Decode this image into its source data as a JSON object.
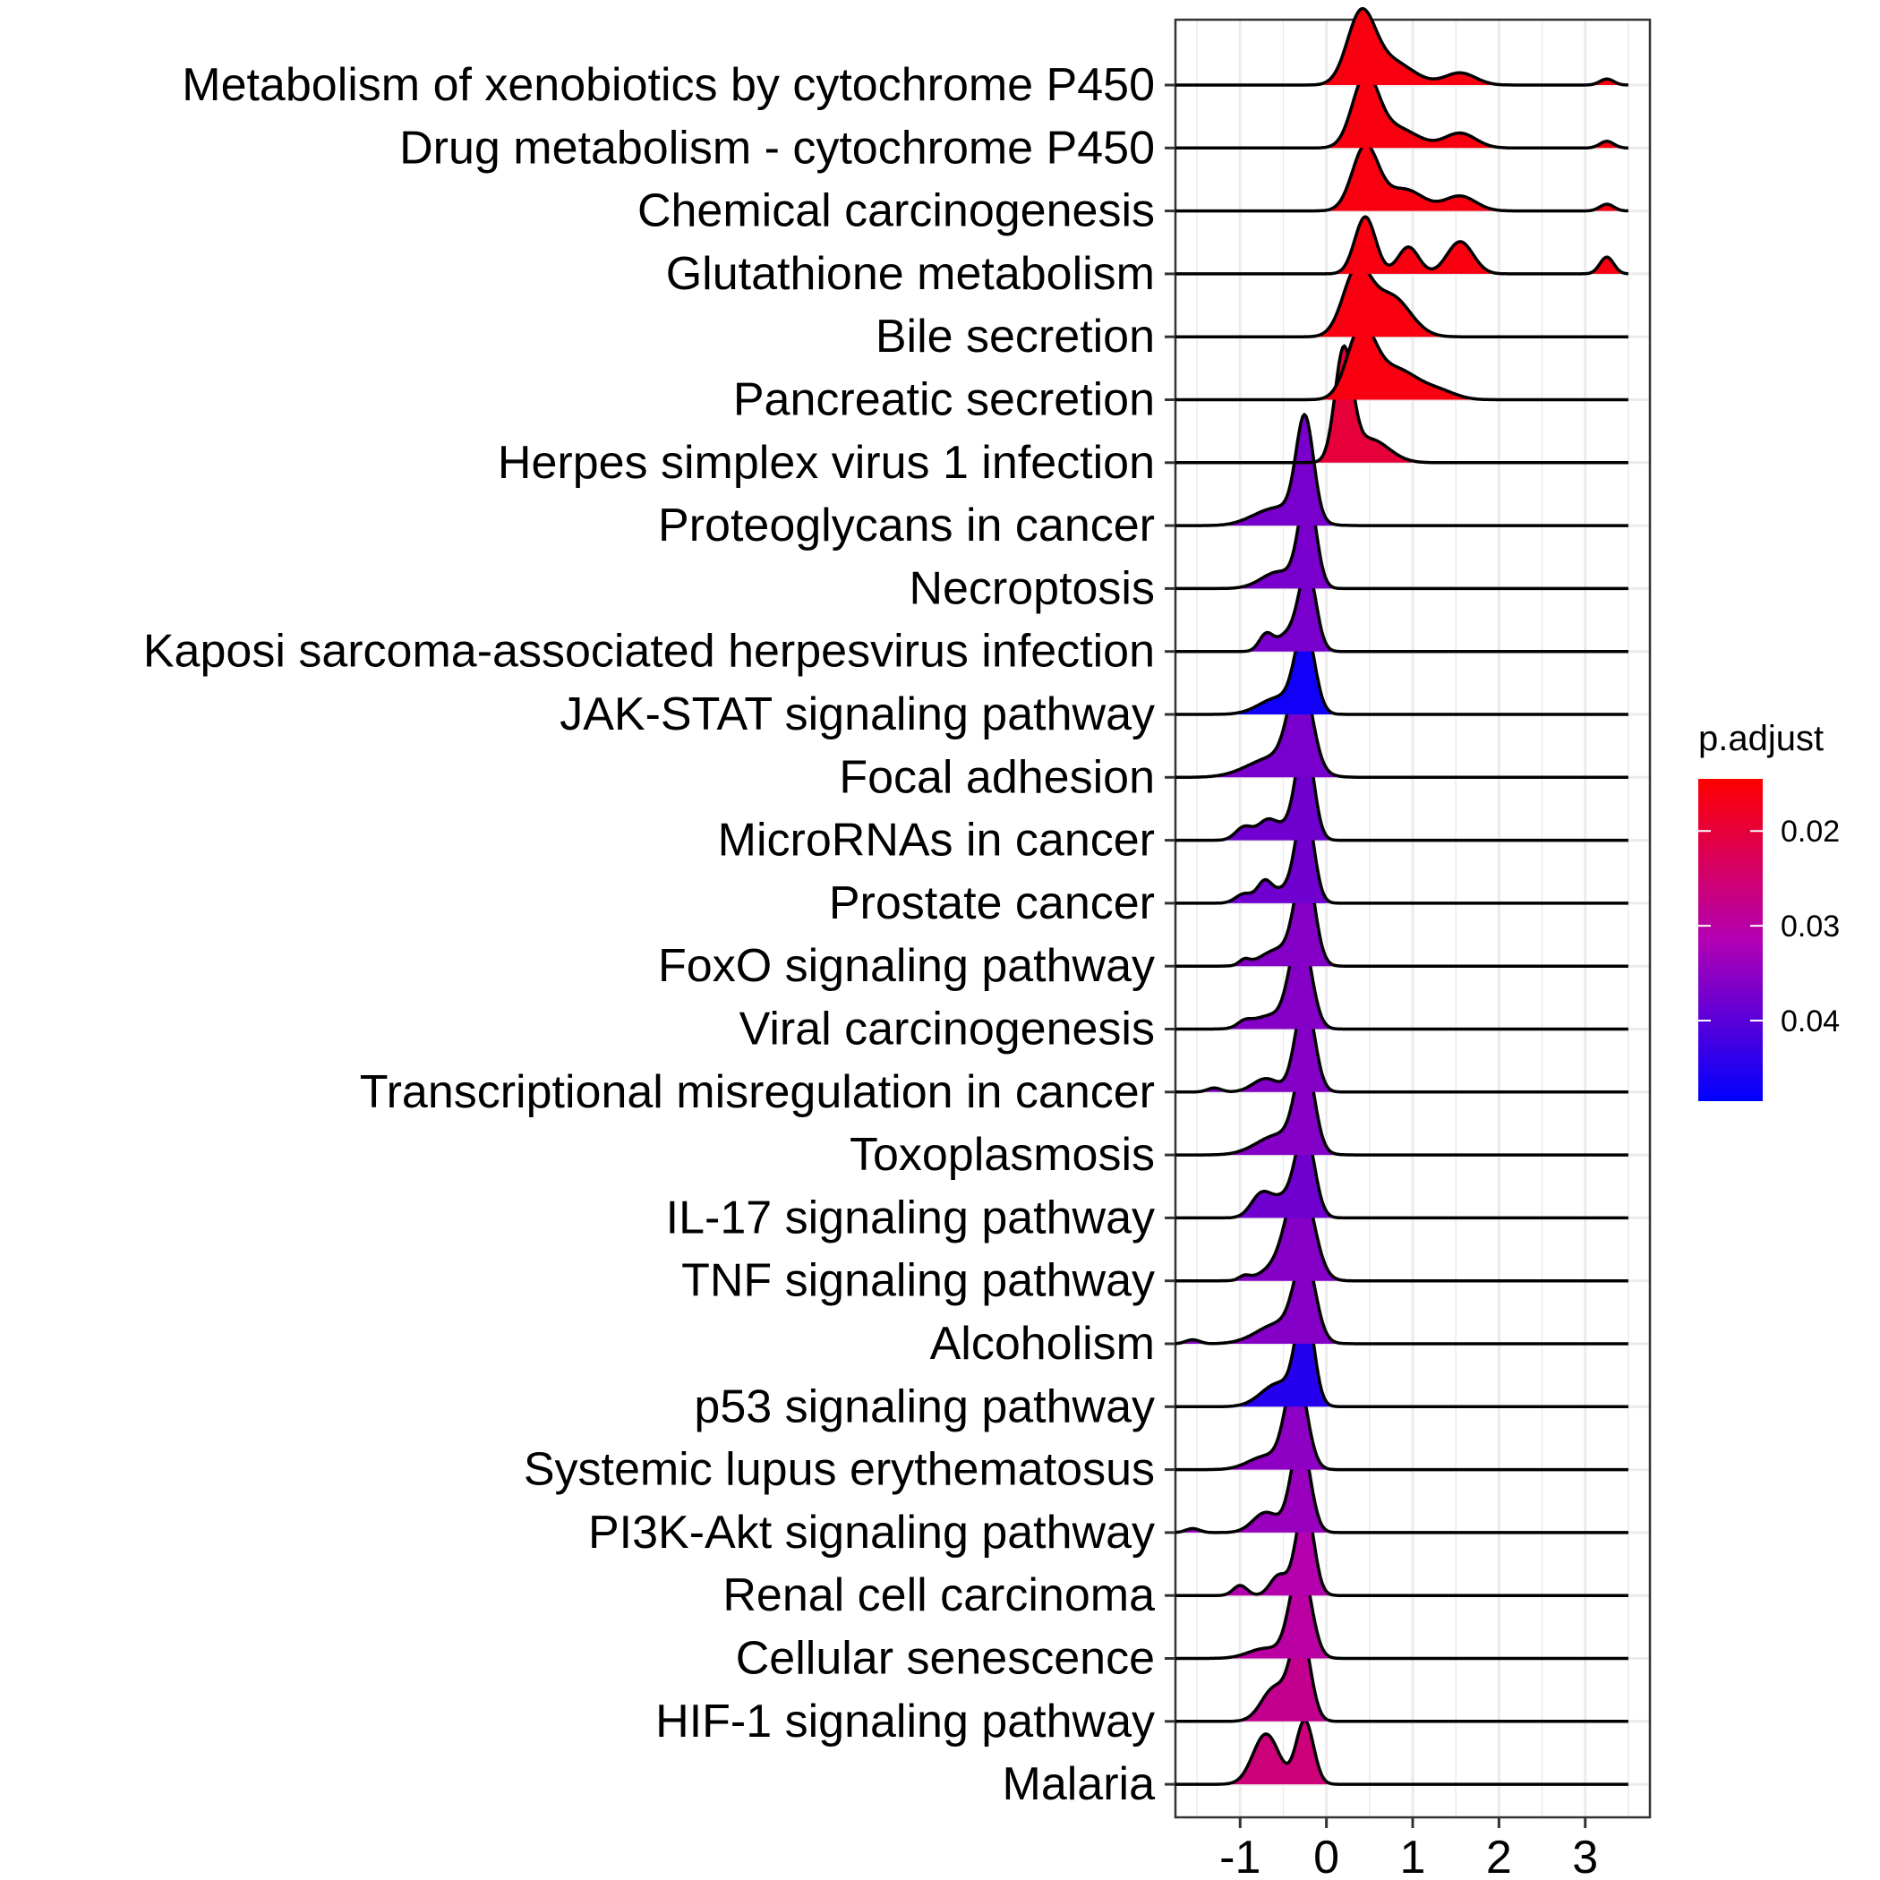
{
  "chart_data": {
    "type": "ridgeline",
    "title": "",
    "xlabel": "",
    "ylabel": "",
    "xlim": [
      -1.75,
      3.75
    ],
    "x_ticks": [
      -1,
      0,
      1,
      2,
      3
    ],
    "x_tick_labels": [
      "-1",
      "0",
      "1",
      "2",
      "3"
    ],
    "grid": true,
    "legend": {
      "title": "p.adjust",
      "position": "right",
      "scale_range": [
        0.0145,
        0.0485
      ],
      "ticks": [
        0.02,
        0.03,
        0.04
      ],
      "tick_labels": [
        "0.02",
        "0.03",
        "0.04"
      ],
      "color_low_padjust": "#ff0000",
      "color_mid_padjust": "#b300b3",
      "color_high_padjust": "#0000ff"
    },
    "series": [
      {
        "name": "Metabolism of xenobiotics by cytochrome P450",
        "p_adjust": 0.016,
        "range": [
          -1.75,
          3.5
        ],
        "peaks": [
          [
            0.4,
            0.16,
            1.0
          ],
          [
            0.75,
            0.25,
            0.35
          ],
          [
            1.55,
            0.18,
            0.18
          ],
          [
            3.25,
            0.08,
            0.09
          ]
        ]
      },
      {
        "name": "Drug metabolism - cytochrome P450",
        "p_adjust": 0.016,
        "range": [
          -1.75,
          3.5
        ],
        "peaks": [
          [
            0.45,
            0.15,
            1.0
          ],
          [
            0.8,
            0.25,
            0.3
          ],
          [
            1.55,
            0.18,
            0.22
          ],
          [
            3.25,
            0.08,
            0.1
          ]
        ]
      },
      {
        "name": "Chemical carcinogenesis",
        "p_adjust": 0.016,
        "range": [
          -1.75,
          3.5
        ],
        "peaks": [
          [
            0.45,
            0.15,
            0.95
          ],
          [
            0.9,
            0.22,
            0.32
          ],
          [
            1.55,
            0.18,
            0.22
          ],
          [
            3.25,
            0.08,
            0.1
          ]
        ]
      },
      {
        "name": "Glutathione metabolism",
        "p_adjust": 0.016,
        "range": [
          -1.75,
          3.5
        ],
        "peaks": [
          [
            0.45,
            0.12,
            0.85
          ],
          [
            0.95,
            0.12,
            0.4
          ],
          [
            1.55,
            0.15,
            0.48
          ],
          [
            3.25,
            0.08,
            0.25
          ]
        ]
      },
      {
        "name": "Bile secretion",
        "p_adjust": 0.016,
        "range": [
          -1.75,
          3.5
        ],
        "peaks": [
          [
            0.35,
            0.16,
            0.95
          ],
          [
            0.75,
            0.22,
            0.6
          ]
        ]
      },
      {
        "name": "Pancreatic secretion",
        "p_adjust": 0.016,
        "range": [
          -1.75,
          3.5
        ],
        "peaks": [
          [
            0.4,
            0.16,
            1.0
          ],
          [
            0.8,
            0.25,
            0.45
          ],
          [
            1.3,
            0.2,
            0.12
          ]
        ]
      },
      {
        "name": "Herpes simplex virus 1 infection",
        "p_adjust": 0.02,
        "range": [
          -1.75,
          3.5
        ],
        "peaks": [
          [
            0.2,
            0.1,
            1.6
          ],
          [
            0.5,
            0.22,
            0.35
          ]
        ]
      },
      {
        "name": "Proteoglycans in cancer",
        "p_adjust": 0.037,
        "range": [
          -1.75,
          3.5
        ],
        "peaks": [
          [
            -0.25,
            0.1,
            1.5
          ],
          [
            -0.5,
            0.25,
            0.25
          ],
          [
            -0.8,
            0.2,
            0.06
          ]
        ]
      },
      {
        "name": "Necroptosis",
        "p_adjust": 0.037,
        "range": [
          -1.75,
          3.5
        ],
        "peaks": [
          [
            -0.22,
            0.1,
            1.4
          ],
          [
            -0.55,
            0.2,
            0.25
          ]
        ]
      },
      {
        "name": "Kaposi sarcoma-associated herpesvirus infection",
        "p_adjust": 0.037,
        "range": [
          -1.75,
          3.5
        ],
        "peaks": [
          [
            -0.22,
            0.1,
            1.2
          ],
          [
            -0.7,
            0.08,
            0.25
          ],
          [
            -0.45,
            0.12,
            0.25
          ]
        ]
      },
      {
        "name": "JAK-STAT signaling pathway",
        "p_adjust": 0.047,
        "range": [
          -1.75,
          3.5
        ],
        "peaks": [
          [
            -0.25,
            0.11,
            1.25
          ],
          [
            -0.55,
            0.22,
            0.25
          ]
        ]
      },
      {
        "name": "Focal adhesion",
        "p_adjust": 0.037,
        "range": [
          -1.75,
          3.5
        ],
        "peaks": [
          [
            -0.3,
            0.13,
            1.4
          ],
          [
            -0.6,
            0.3,
            0.3
          ]
        ]
      },
      {
        "name": "MicroRNAs in cancer",
        "p_adjust": 0.038,
        "range": [
          -1.75,
          3.5
        ],
        "peaks": [
          [
            -0.25,
            0.1,
            1.5
          ],
          [
            -0.95,
            0.1,
            0.2
          ],
          [
            -0.7,
            0.1,
            0.22
          ],
          [
            -0.5,
            0.15,
            0.2
          ]
        ]
      },
      {
        "name": "Prostate cancer",
        "p_adjust": 0.038,
        "range": [
          -1.75,
          3.5
        ],
        "peaks": [
          [
            -0.25,
            0.1,
            1.45
          ],
          [
            -0.95,
            0.1,
            0.14
          ],
          [
            -0.72,
            0.08,
            0.27
          ],
          [
            -0.5,
            0.15,
            0.2
          ]
        ]
      },
      {
        "name": "FoxO signaling pathway",
        "p_adjust": 0.036,
        "range": [
          -1.75,
          3.5
        ],
        "peaks": [
          [
            -0.25,
            0.11,
            1.5
          ],
          [
            -0.55,
            0.2,
            0.25
          ],
          [
            -0.95,
            0.06,
            0.08
          ]
        ]
      },
      {
        "name": "Viral carcinogenesis",
        "p_adjust": 0.036,
        "range": [
          -1.75,
          3.5
        ],
        "peaks": [
          [
            -0.3,
            0.12,
            1.45
          ],
          [
            -0.65,
            0.2,
            0.2
          ],
          [
            -0.95,
            0.08,
            0.08
          ]
        ]
      },
      {
        "name": "Transcriptional misregulation in cancer",
        "p_adjust": 0.036,
        "range": [
          -1.75,
          3.5
        ],
        "peaks": [
          [
            -0.25,
            0.11,
            1.4
          ],
          [
            -0.7,
            0.15,
            0.2
          ],
          [
            -1.3,
            0.08,
            0.06
          ]
        ]
      },
      {
        "name": "Toxoplasmosis",
        "p_adjust": 0.036,
        "range": [
          -1.75,
          3.5
        ],
        "peaks": [
          [
            -0.25,
            0.11,
            1.3
          ],
          [
            -0.55,
            0.25,
            0.3
          ]
        ]
      },
      {
        "name": "IL-17 signaling pathway",
        "p_adjust": 0.038,
        "range": [
          -1.75,
          3.5
        ],
        "peaks": [
          [
            -0.25,
            0.11,
            1.3
          ],
          [
            -0.75,
            0.12,
            0.36
          ],
          [
            -0.5,
            0.12,
            0.25
          ]
        ]
      },
      {
        "name": "TNF signaling pathway",
        "p_adjust": 0.036,
        "range": [
          -1.75,
          3.5
        ],
        "peaks": [
          [
            -0.3,
            0.15,
            1.45
          ],
          [
            -0.55,
            0.2,
            0.2
          ],
          [
            -0.95,
            0.06,
            0.06
          ]
        ]
      },
      {
        "name": "Alcoholism",
        "p_adjust": 0.036,
        "range": [
          -1.75,
          3.5
        ],
        "peaks": [
          [
            -0.25,
            0.12,
            1.2
          ],
          [
            -0.55,
            0.25,
            0.3
          ],
          [
            -1.55,
            0.08,
            0.06
          ]
        ]
      },
      {
        "name": "p53 signaling pathway",
        "p_adjust": 0.045,
        "range": [
          -1.75,
          3.5
        ],
        "peaks": [
          [
            -0.25,
            0.1,
            1.5
          ],
          [
            -0.55,
            0.2,
            0.35
          ]
        ]
      },
      {
        "name": "Systemic lupus erythematosus",
        "p_adjust": 0.035,
        "range": [
          -1.75,
          3.5
        ],
        "peaks": [
          [
            -0.35,
            0.12,
            1.45
          ],
          [
            -0.7,
            0.2,
            0.2
          ]
        ]
      },
      {
        "name": "PI3K-Akt signaling pathway",
        "p_adjust": 0.034,
        "range": [
          -1.75,
          3.5
        ],
        "peaks": [
          [
            -0.3,
            0.11,
            1.4
          ],
          [
            -0.7,
            0.15,
            0.3
          ],
          [
            -1.55,
            0.08,
            0.06
          ]
        ]
      },
      {
        "name": "Renal cell carcinoma",
        "p_adjust": 0.031,
        "range": [
          -1.75,
          3.5
        ],
        "peaks": [
          [
            -0.25,
            0.1,
            1.4
          ],
          [
            -1.0,
            0.08,
            0.15
          ],
          [
            -0.55,
            0.1,
            0.3
          ]
        ]
      },
      {
        "name": "Cellular senescence",
        "p_adjust": 0.03,
        "range": [
          -1.75,
          3.5
        ],
        "peaks": [
          [
            -0.3,
            0.12,
            1.4
          ],
          [
            -0.7,
            0.2,
            0.15
          ]
        ]
      },
      {
        "name": "HIF-1 signaling pathway",
        "p_adjust": 0.028,
        "range": [
          -1.75,
          3.5
        ],
        "peaks": [
          [
            -0.3,
            0.11,
            1.35
          ],
          [
            -0.6,
            0.15,
            0.5
          ]
        ]
      },
      {
        "name": "Malaria",
        "p_adjust": 0.026,
        "range": [
          -1.75,
          3.5
        ],
        "peaks": [
          [
            -0.25,
            0.1,
            0.95
          ],
          [
            -0.7,
            0.15,
            0.75
          ]
        ]
      }
    ]
  }
}
